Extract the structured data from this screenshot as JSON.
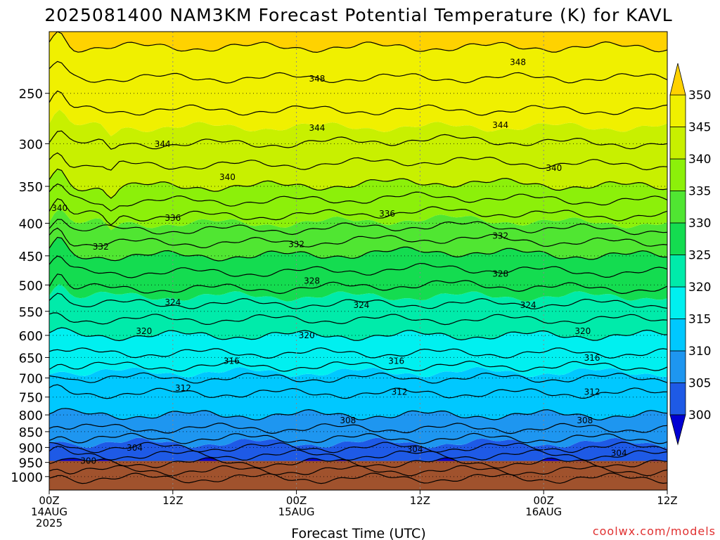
{
  "title": "2025081400 NAM3KM Forecast Potential Temperature (K) for KAVL",
  "watermark": "coolwx.com/models",
  "chart_data": {
    "type": "heatmap",
    "title": "2025081400 NAM3KM Forecast Potential Temperature (K) for KAVL",
    "xlabel": "Forecast Time (UTC)",
    "ylabel": "",
    "x_unit": "forecast hour",
    "xlim": [
      0,
      60
    ],
    "y_scale": "log",
    "y_orientation": "pressure decreasing upward",
    "ylim": [
      1050,
      200
    ],
    "grid": true,
    "x_ticks": [
      {
        "x": 0,
        "lines": [
          "00Z",
          "14AUG",
          "2025"
        ]
      },
      {
        "x": 12,
        "lines": [
          "12Z"
        ]
      },
      {
        "x": 24,
        "lines": [
          "00Z",
          "15AUG"
        ]
      },
      {
        "x": 36,
        "lines": [
          "12Z"
        ]
      },
      {
        "x": 48,
        "lines": [
          "00Z",
          "16AUG"
        ]
      },
      {
        "x": 60,
        "lines": [
          "12Z"
        ]
      }
    ],
    "y_ticks": [
      250,
      300,
      350,
      400,
      450,
      500,
      550,
      600,
      650,
      700,
      750,
      800,
      850,
      900,
      950,
      1000
    ],
    "surface_pressure": 945,
    "surface_color": "#a0522d",
    "colorbar": {
      "levels": [
        300,
        305,
        310,
        315,
        320,
        325,
        330,
        335,
        340,
        345,
        350
      ],
      "colors": [
        "#0000d2",
        "#1e5ae6",
        "#1e96f0",
        "#00c8ff",
        "#00f0f0",
        "#00ebaa",
        "#14dc50",
        "#50e632",
        "#8cf00a",
        "#c8f000",
        "#f0f000",
        "#ffd200"
      ],
      "extend": "both"
    },
    "theta_profile": {
      "pressure": [
        945,
        900,
        850,
        800,
        750,
        700,
        650,
        600,
        550,
        500,
        450,
        400,
        350,
        300,
        250,
        200
      ],
      "theta": [
        300.5,
        304,
        307.5,
        310,
        311.5,
        314,
        317.5,
        320,
        323,
        326.5,
        330,
        335,
        340,
        344,
        347,
        351
      ]
    },
    "contour_interval": 2,
    "contour_labels": [
      {
        "hour": 3.8,
        "p": 944,
        "value": "300"
      },
      {
        "hour": 8.3,
        "p": 900,
        "value": "304"
      },
      {
        "hour": 35.5,
        "p": 905,
        "value": "304"
      },
      {
        "hour": 55.3,
        "p": 918,
        "value": "304"
      },
      {
        "hour": 29.0,
        "p": 815,
        "value": "308"
      },
      {
        "hour": 52.0,
        "p": 815,
        "value": "308"
      },
      {
        "hour": 13.0,
        "p": 725,
        "value": "312"
      },
      {
        "hour": 34.0,
        "p": 735,
        "value": "312"
      },
      {
        "hour": 52.7,
        "p": 735,
        "value": "312"
      },
      {
        "hour": 17.7,
        "p": 658,
        "value": "316"
      },
      {
        "hour": 33.7,
        "p": 658,
        "value": "316"
      },
      {
        "hour": 52.7,
        "p": 650,
        "value": "316"
      },
      {
        "hour": 9.2,
        "p": 590,
        "value": "320"
      },
      {
        "hour": 25.0,
        "p": 599,
        "value": "320"
      },
      {
        "hour": 51.8,
        "p": 590,
        "value": "320"
      },
      {
        "hour": 12.0,
        "p": 532,
        "value": "324"
      },
      {
        "hour": 30.3,
        "p": 537,
        "value": "324"
      },
      {
        "hour": 46.5,
        "p": 537,
        "value": "324"
      },
      {
        "hour": 25.5,
        "p": 492,
        "value": "328"
      },
      {
        "hour": 43.8,
        "p": 480,
        "value": "328"
      },
      {
        "hour": 5.0,
        "p": 435,
        "value": "332"
      },
      {
        "hour": 24.0,
        "p": 431,
        "value": "332"
      },
      {
        "hour": 43.8,
        "p": 418,
        "value": "332"
      },
      {
        "hour": 12.0,
        "p": 392,
        "value": "336"
      },
      {
        "hour": 32.8,
        "p": 386,
        "value": "336"
      },
      {
        "hour": 1.0,
        "p": 378,
        "value": "340"
      },
      {
        "hour": 17.3,
        "p": 338,
        "value": "340"
      },
      {
        "hour": 49.0,
        "p": 327,
        "value": "340"
      },
      {
        "hour": 11.0,
        "p": 300,
        "value": "344"
      },
      {
        "hour": 26.0,
        "p": 283,
        "value": "344"
      },
      {
        "hour": 43.8,
        "p": 280,
        "value": "344"
      },
      {
        "hour": 26.0,
        "p": 237,
        "value": "348"
      },
      {
        "hour": 45.5,
        "p": 223,
        "value": "348"
      }
    ]
  }
}
